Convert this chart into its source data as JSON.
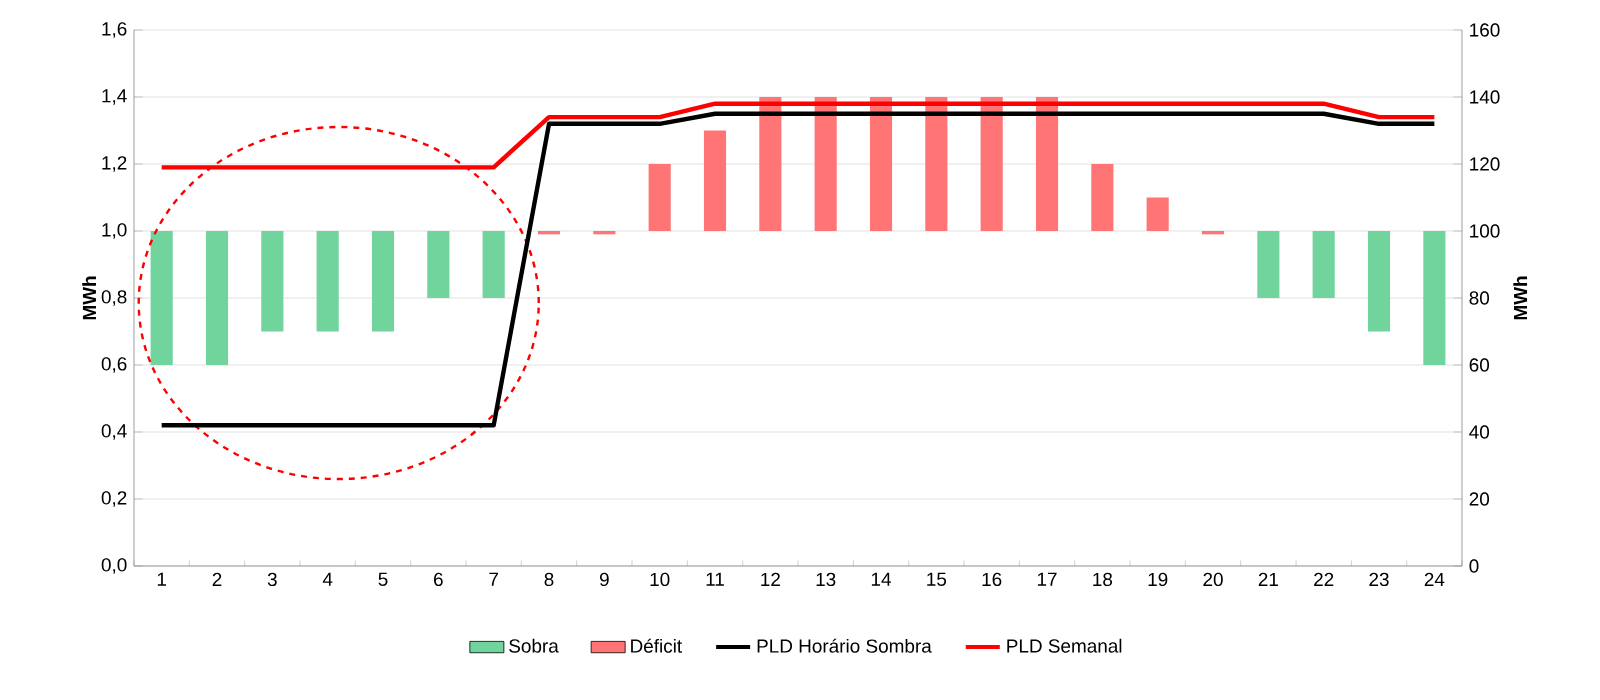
{
  "chart_data": {
    "type": "bar",
    "categories": [
      "1",
      "2",
      "3",
      "4",
      "5",
      "6",
      "7",
      "8",
      "9",
      "10",
      "11",
      "12",
      "13",
      "14",
      "15",
      "16",
      "17",
      "18",
      "19",
      "20",
      "21",
      "22",
      "23",
      "24"
    ],
    "ylabel": "MWh",
    "y2label": "MWh",
    "ylim": [
      0,
      1.6
    ],
    "yticks": [
      {
        "value": 0,
        "label": "0,0"
      },
      {
        "value": 0.2,
        "label": "0,2"
      },
      {
        "value": 0.4,
        "label": "0,4"
      },
      {
        "value": 0.6,
        "label": "0,6"
      },
      {
        "value": 0.8,
        "label": "0,8"
      },
      {
        "value": 1.0,
        "label": "1,0"
      },
      {
        "value": 1.2,
        "label": "1,2"
      },
      {
        "value": 1.4,
        "label": "1,4"
      },
      {
        "value": 1.6,
        "label": "1,6"
      }
    ],
    "y2lim": [
      0,
      160
    ],
    "y2ticks": [
      0,
      20,
      40,
      60,
      80,
      100,
      120,
      140,
      160
    ],
    "grid": "y",
    "legend": "bottom",
    "series": [
      {
        "name": "Sobra",
        "color": "#70d49c",
        "base": [
          1,
          1,
          1,
          1,
          1,
          1,
          1,
          null,
          null,
          null,
          null,
          null,
          null,
          null,
          null,
          null,
          null,
          null,
          null,
          null,
          1,
          1,
          1,
          1
        ],
        "values": [
          -0.4,
          -0.4,
          -0.3,
          -0.3,
          -0.3,
          -0.2,
          -0.2,
          null,
          null,
          null,
          null,
          null,
          null,
          null,
          null,
          null,
          null,
          null,
          null,
          null,
          -0.2,
          -0.2,
          -0.3,
          -0.4
        ]
      },
      {
        "name": "Déficit",
        "color": "#ff7575",
        "base": [
          null,
          null,
          null,
          null,
          null,
          null,
          null,
          1,
          1,
          1,
          1,
          1,
          1,
          1,
          1,
          1,
          1,
          1,
          1,
          1,
          null,
          null,
          null,
          null
        ],
        "values": [
          null,
          null,
          null,
          null,
          null,
          null,
          null,
          -0.01,
          -0.01,
          0.2,
          0.3,
          0.4,
          0.4,
          0.4,
          0.4,
          0.4,
          0.4,
          0.2,
          0.1,
          -0.01,
          null,
          null,
          null,
          null
        ]
      },
      {
        "name": "PLD Horário Sombra",
        "type": "line",
        "axis": "y2",
        "color": "#000000",
        "values": [
          42,
          42,
          42,
          42,
          42,
          42,
          42,
          132,
          132,
          132,
          135,
          135,
          135,
          135,
          135,
          135,
          135,
          135,
          135,
          135,
          135,
          135,
          132,
          132
        ]
      },
      {
        "name": "PLD Semanal",
        "type": "line",
        "axis": "y2",
        "color": "#ff0000",
        "values": [
          119,
          119,
          119,
          119,
          119,
          119,
          119,
          134,
          134,
          134,
          138,
          138,
          138,
          138,
          138,
          138,
          138,
          138,
          138,
          138,
          138,
          138,
          134,
          134
        ]
      }
    ]
  }
}
